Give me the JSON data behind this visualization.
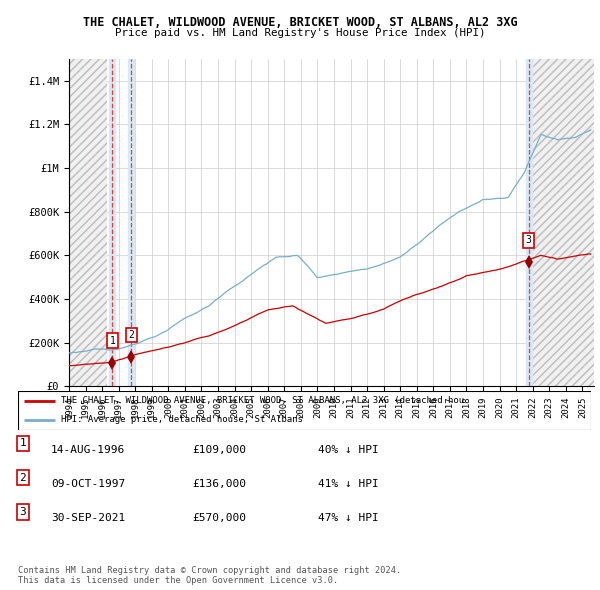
{
  "title": "THE CHALET, WILDWOOD AVENUE, BRICKET WOOD, ST ALBANS, AL2 3XG",
  "subtitle": "Price paid vs. HM Land Registry's House Price Index (HPI)",
  "xlim": [
    1994.0,
    2025.7
  ],
  "ylim": [
    0,
    1500000
  ],
  "yticks": [
    0,
    200000,
    400000,
    600000,
    800000,
    1000000,
    1200000,
    1400000
  ],
  "ytick_labels": [
    "£0",
    "£200K",
    "£400K",
    "£600K",
    "£800K",
    "£1M",
    "£1.2M",
    "£1.4M"
  ],
  "sale_points": [
    {
      "year": 1996.62,
      "price": 109000,
      "label": "1"
    },
    {
      "year": 1997.77,
      "price": 136000,
      "label": "2"
    },
    {
      "year": 2021.75,
      "price": 570000,
      "label": "3"
    }
  ],
  "hatch_left_end": 1996.3,
  "hatch_right_start": 2021.95,
  "table_rows": [
    {
      "num": "1",
      "date": "14-AUG-1996",
      "price": "£109,000",
      "hpi": "40% ↓ HPI"
    },
    {
      "num": "2",
      "date": "09-OCT-1997",
      "price": "£136,000",
      "hpi": "41% ↓ HPI"
    },
    {
      "num": "3",
      "date": "30-SEP-2021",
      "price": "£570,000",
      "hpi": "47% ↓ HPI"
    }
  ],
  "legend_line1": "THE CHALET, WILDWOOD AVENUE, BRICKET WOOD, ST ALBANS, AL2 3XG (detached hou",
  "legend_line2": "HPI: Average price, detached house, St Albans",
  "footer": "Contains HM Land Registry data © Crown copyright and database right 2024.\nThis data is licensed under the Open Government Licence v3.0.",
  "red_line_color": "#cc0000",
  "blue_line_color": "#7aaecc",
  "marker_color": "#990000",
  "vline_color": "#dd4444",
  "highlight_bg": "#d8e8f5",
  "grid_color": "#cccccc",
  "sale_label_border": "#cc0000",
  "hatch_color": "#bbbbbb"
}
